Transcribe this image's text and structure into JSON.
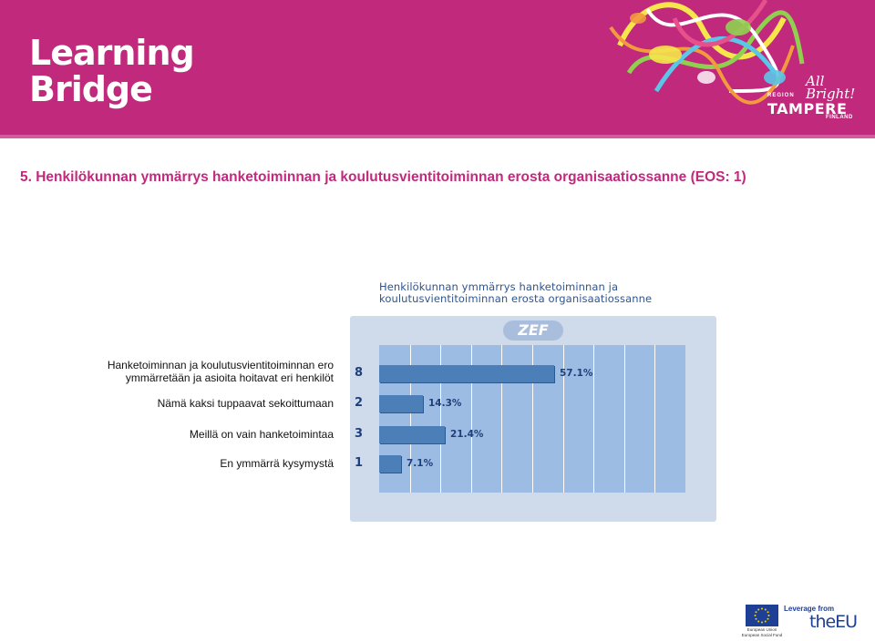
{
  "header": {
    "logo_line1": "Learning",
    "logo_line2": "Bridge",
    "region_label": "REGION",
    "allbright": "All Bright!",
    "tampere": "TAMPERE",
    "finland": "FINLAND",
    "colors": {
      "brand": "#c0297c"
    }
  },
  "slide": {
    "title": "5. Henkilökunnan ymmärrys hanketoiminnan ja koulutusvientitoiminnan erosta organisaatiossanne (EOS: 1)"
  },
  "chart_data": {
    "type": "bar",
    "orientation": "horizontal",
    "title_line1": "Henkilökunnan ymmärrys hanketoiminnan ja",
    "title_line2": "koulutusvientitoiminnan erosta organisaatiossanne",
    "badge": "ZEF",
    "categories": [
      "Hanketoiminnan ja koulutusvientitoiminnan ero ymmärretään ja asioita hoitavat eri henkilöt",
      "Nämä kaksi tuppaavat sekoittumaan",
      "Meillä on vain hanketoimintaa",
      "En ymmärrä kysymystä"
    ],
    "category_lines": [
      [
        "Hanketoiminnan ja koulutusvientitoiminnan ero",
        "ymmärretään ja asioita hoitavat eri henkilöt"
      ],
      [
        "Nämä kaksi tuppaavat sekoittumaan"
      ],
      [
        "Meillä on vain hanketoimintaa"
      ],
      [
        "En ymmärrä kysymystä"
      ]
    ],
    "counts": [
      "8",
      "2",
      "3",
      "1"
    ],
    "values": [
      57.1,
      14.3,
      21.4,
      7.1
    ],
    "value_labels": [
      "57.1%",
      "14.3%",
      "21.4%",
      "7.1%"
    ],
    "xlim": [
      0,
      100
    ],
    "grid": true,
    "colors": {
      "bar": "#4c7eb8",
      "plot_bg": "#9dbce3",
      "frame": "#cfdaeb"
    }
  },
  "footer": {
    "eu_caption_line1": "European Union",
    "eu_caption_line2": "European Social Fund",
    "leverage": "Leverage from",
    "the_eu": "theEU"
  }
}
